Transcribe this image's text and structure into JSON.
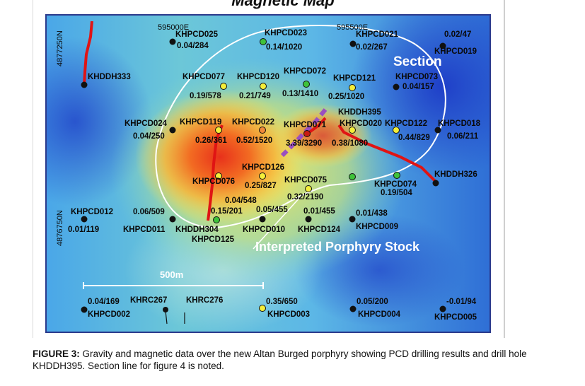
{
  "title": "Magnetic Map",
  "caption": {
    "label": "FIGURE 3:",
    "text": "Gravity and magnetic data over the new Altan Burged porphyry showing PCD drilling results and drill hole KHDDH395. Section line for figure 4 is noted."
  },
  "coords": {
    "e1": "595000E",
    "e2": "595500E",
    "n1": "4877250N",
    "n2": "4876750N"
  },
  "annotations": {
    "section": "Section",
    "porphyry": "Interpreted Porphyry Stock",
    "scale": "500m"
  },
  "colors": {
    "black_hole": "#111111",
    "yellow_hole": "#f4ee3a",
    "green_hole": "#3fc23a",
    "orange_hole": "#f08a3a",
    "red_hole": "#c81b12",
    "drill_trace": "#e01414",
    "section_line": "#9a4fc0",
    "outline": "#ffffff"
  },
  "labels": [
    {
      "id": "KHPCD025",
      "text": "KHPCD025"
    },
    {
      "id": "v025",
      "text": "0.04/284"
    },
    {
      "id": "KHPCD023",
      "text": "KHPCD023"
    },
    {
      "id": "v023",
      "text": "0.14/1020"
    },
    {
      "id": "KHPCD021",
      "text": "KHPCD021"
    },
    {
      "id": "v021",
      "text": "0.02/267"
    },
    {
      "id": "v019",
      "text": "0.02/47"
    },
    {
      "id": "KHPCD019",
      "text": "KHPCD019"
    },
    {
      "id": "KHDDH333",
      "text": "KHDDH333"
    },
    {
      "id": "KHPCD077",
      "text": "KHPCD077"
    },
    {
      "id": "KHPCD120",
      "text": "KHPCD120"
    },
    {
      "id": "KHPCD072",
      "text": "KHPCD072"
    },
    {
      "id": "KHPCD121",
      "text": "KHPCD121"
    },
    {
      "id": "KHPCD073",
      "text": "KHPCD073"
    },
    {
      "id": "v073",
      "text": "0.04/157"
    },
    {
      "id": "v077",
      "text": "0.19/578"
    },
    {
      "id": "v120",
      "text": "0.21/749"
    },
    {
      "id": "v072",
      "text": "0.13/1410"
    },
    {
      "id": "v121",
      "text": "0.25/1020"
    },
    {
      "id": "KHDDH395",
      "text": "KHDDH395"
    },
    {
      "id": "KHPCD024",
      "text": "KHPCD024"
    },
    {
      "id": "KHPCD119",
      "text": "KHPCD119"
    },
    {
      "id": "KHPCD022",
      "text": "KHPCD022"
    },
    {
      "id": "KHPCD071",
      "text": "KHPCD071"
    },
    {
      "id": "KHPCD020",
      "text": "KHPCD020"
    },
    {
      "id": "KHPCD122",
      "text": "KHPCD122"
    },
    {
      "id": "KHPCD018",
      "text": "KHPCD018"
    },
    {
      "id": "v024",
      "text": "0.04/250"
    },
    {
      "id": "v119",
      "text": "0.26/361"
    },
    {
      "id": "v022",
      "text": "0.52/1520"
    },
    {
      "id": "v071",
      "text": "3.39/3290"
    },
    {
      "id": "v020",
      "text": "0.38/1080"
    },
    {
      "id": "v122",
      "text": "0.44/829"
    },
    {
      "id": "v018",
      "text": "0.06/211"
    },
    {
      "id": "KHPCD126",
      "text": "KHPCD126"
    },
    {
      "id": "KHPCD076",
      "text": "KHPCD076"
    },
    {
      "id": "v126",
      "text": "0.25/827"
    },
    {
      "id": "KHPCD075",
      "text": "KHPCD075"
    },
    {
      "id": "KHDDH326",
      "text": "KHDDH326"
    },
    {
      "id": "KHPCD074",
      "text": "KHPCD074"
    },
    {
      "id": "v074",
      "text": "0.19/504"
    },
    {
      "id": "v075",
      "text": "0.32/2190"
    },
    {
      "id": "v076",
      "text": "0.04/548"
    },
    {
      "id": "KHPCD012",
      "text": "KHPCD012"
    },
    {
      "id": "v011",
      "text": "0.06/509"
    },
    {
      "id": "v304",
      "text": "0.15/201"
    },
    {
      "id": "v010",
      "text": "0.05/455"
    },
    {
      "id": "v124",
      "text": "0.01/455"
    },
    {
      "id": "v009",
      "text": "0.01/438"
    },
    {
      "id": "v012",
      "text": "0.01/119"
    },
    {
      "id": "KHPCD011",
      "text": "KHPCD011"
    },
    {
      "id": "KHDDH304",
      "text": "KHDDH304"
    },
    {
      "id": "KHPCD010",
      "text": "KHPCD010"
    },
    {
      "id": "KHPCD124",
      "text": "KHPCD124"
    },
    {
      "id": "KHPCD009",
      "text": "KHPCD009"
    },
    {
      "id": "KHPCD125",
      "text": "KHPCD125"
    },
    {
      "id": "v002",
      "text": "0.04/169"
    },
    {
      "id": "KHRC267",
      "text": "KHRC267"
    },
    {
      "id": "KHRC276",
      "text": "KHRC276"
    },
    {
      "id": "v003",
      "text": "0.35/650"
    },
    {
      "id": "v004",
      "text": "0.05/200"
    },
    {
      "id": "v005",
      "text": "-0.01/94"
    },
    {
      "id": "KHPCD002",
      "text": "KHPCD002"
    },
    {
      "id": "KHPCD003",
      "text": "KHPCD003"
    },
    {
      "id": "KHPCD004",
      "text": "KHPCD004"
    },
    {
      "id": "KHPCD005",
      "text": "KHPCD005"
    }
  ]
}
